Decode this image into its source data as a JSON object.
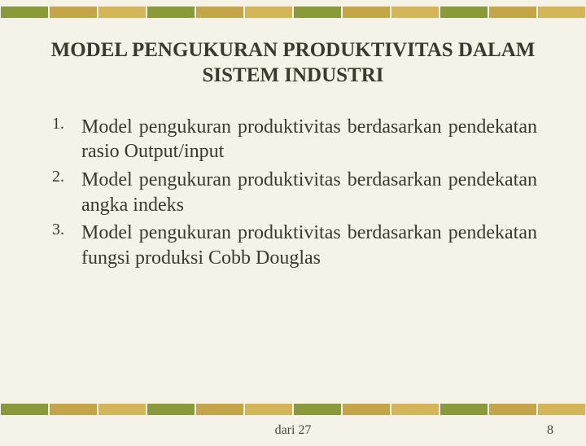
{
  "decorative_bar": {
    "segment_count": 12,
    "colors": [
      "#8a9a3a",
      "#c4a54a",
      "#d4b55a",
      "#8a9a3a",
      "#c4a54a",
      "#d4b55a",
      "#8a9a3a",
      "#c4a54a",
      "#d4b55a",
      "#8a9a3a",
      "#c4a54a",
      "#d4b55a"
    ]
  },
  "title": "MODEL PENGUKURAN PRODUKTIVITAS DALAM SISTEM INDUSTRI",
  "items": [
    {
      "number": "1.",
      "text": "Model pengukuran produktivitas berdasarkan pendekatan rasio Output/input"
    },
    {
      "number": "2.",
      "text": "Model pengukuran produktivitas berdasarkan pendekatan angka indeks"
    },
    {
      "number": "3.",
      "text": "Model pengukuran produktivitas berdasarkan pendekatan fungsi produksi Cobb Douglas"
    }
  ],
  "footer": {
    "center": "dari 27",
    "page_number": "8"
  },
  "background_color": "#f5f2e8",
  "text_color": "#3a3a2a"
}
